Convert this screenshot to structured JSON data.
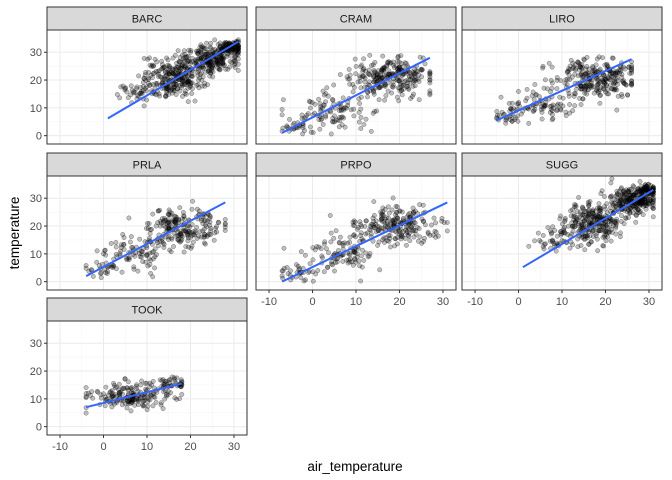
{
  "chart_data": {
    "type": "scatter",
    "facet_by": "site",
    "xlabel": "air_temperature",
    "ylabel": "temperature",
    "xlim": [
      -13,
      33
    ],
    "ylim": [
      -3,
      38
    ],
    "x_ticks": [
      -10,
      0,
      10,
      20,
      30
    ],
    "y_ticks": [
      0,
      10,
      20,
      30
    ],
    "grid": true,
    "point_color": "#000000",
    "point_alpha": 0.25,
    "trend_line": "linear",
    "trend_color": "#3366ff",
    "panels": [
      {
        "name": "BARC",
        "x_min": 1,
        "x_max": 31,
        "fit_start": [
          1,
          6.2
        ],
        "fit_end": [
          31,
          33.8
        ],
        "clusters": [
          {
            "cx": 16,
            "cy": 21,
            "sx": 3.5,
            "sy": 3.5,
            "n": 260
          },
          {
            "cx": 25,
            "cy": 28,
            "sx": 3.2,
            "sy": 2.5,
            "n": 220
          },
          {
            "cx": 29.5,
            "cy": 32,
            "sx": 1.5,
            "sy": 1.2,
            "n": 90
          },
          {
            "cx": 8,
            "cy": 15,
            "sx": 3,
            "sy": 2,
            "n": 40
          }
        ]
      },
      {
        "name": "CRAM",
        "x_min": -7,
        "x_max": 27,
        "fit_start": [
          -7,
          1
        ],
        "fit_end": [
          27,
          28
        ],
        "clusters": [
          {
            "cx": 18,
            "cy": 21,
            "sx": 5,
            "sy": 3.5,
            "n": 260
          },
          {
            "cx": 5,
            "cy": 9,
            "sx": 4.5,
            "sy": 3.5,
            "n": 90
          },
          {
            "cx": -3,
            "cy": 2.5,
            "sx": 2.5,
            "sy": 1.5,
            "n": 30
          }
        ]
      },
      {
        "name": "LIRO",
        "x_min": -5,
        "x_max": 26,
        "fit_start": [
          -5,
          5.5
        ],
        "fit_end": [
          26,
          27.5
        ],
        "clusters": [
          {
            "cx": 18,
            "cy": 21,
            "sx": 5,
            "sy": 3.5,
            "n": 260
          },
          {
            "cx": 5,
            "cy": 11,
            "sx": 4,
            "sy": 3,
            "n": 90
          },
          {
            "cx": -2,
            "cy": 7,
            "sx": 2,
            "sy": 1.5,
            "n": 25
          }
        ]
      },
      {
        "name": "PRLA",
        "x_min": -4,
        "x_max": 28,
        "fit_start": [
          -4,
          2
        ],
        "fit_end": [
          28,
          28.5
        ],
        "clusters": [
          {
            "cx": 19,
            "cy": 20,
            "sx": 4.5,
            "sy": 3.5,
            "n": 200
          },
          {
            "cx": 8,
            "cy": 11,
            "sx": 4,
            "sy": 3.5,
            "n": 90
          },
          {
            "cx": -1,
            "cy": 4,
            "sx": 2,
            "sy": 1.5,
            "n": 25
          }
        ]
      },
      {
        "name": "PRPO",
        "x_min": -7,
        "x_max": 31,
        "fit_start": [
          -7,
          0
        ],
        "fit_end": [
          31,
          28.5
        ],
        "clusters": [
          {
            "cx": 19,
            "cy": 20,
            "sx": 5,
            "sy": 3.5,
            "n": 220
          },
          {
            "cx": 7,
            "cy": 10,
            "sx": 4,
            "sy": 3.5,
            "n": 100
          },
          {
            "cx": -3,
            "cy": 3,
            "sx": 2.5,
            "sy": 1.5,
            "n": 30
          }
        ]
      },
      {
        "name": "SUGG",
        "x_min": 1,
        "x_max": 31,
        "fit_start": [
          1,
          5.2
        ],
        "fit_end": [
          31,
          33
        ],
        "clusters": [
          {
            "cx": 17,
            "cy": 21,
            "sx": 3.5,
            "sy": 3.5,
            "n": 260
          },
          {
            "cx": 26,
            "cy": 29,
            "sx": 3,
            "sy": 2.5,
            "n": 220
          },
          {
            "cx": 29.5,
            "cy": 32.5,
            "sx": 1.5,
            "sy": 1,
            "n": 90
          },
          {
            "cx": 9,
            "cy": 14,
            "sx": 3,
            "sy": 2.5,
            "n": 40
          }
        ]
      },
      {
        "name": "TOOK",
        "x_min": -4,
        "x_max": 18,
        "fit_start": [
          -4,
          7
        ],
        "fit_end": [
          18,
          15.5
        ],
        "clusters": [
          {
            "cx": 7,
            "cy": 11,
            "sx": 5,
            "sy": 2.3,
            "n": 180
          },
          {
            "cx": 15,
            "cy": 15.5,
            "sx": 2,
            "sy": 1.5,
            "n": 40
          }
        ]
      }
    ]
  }
}
